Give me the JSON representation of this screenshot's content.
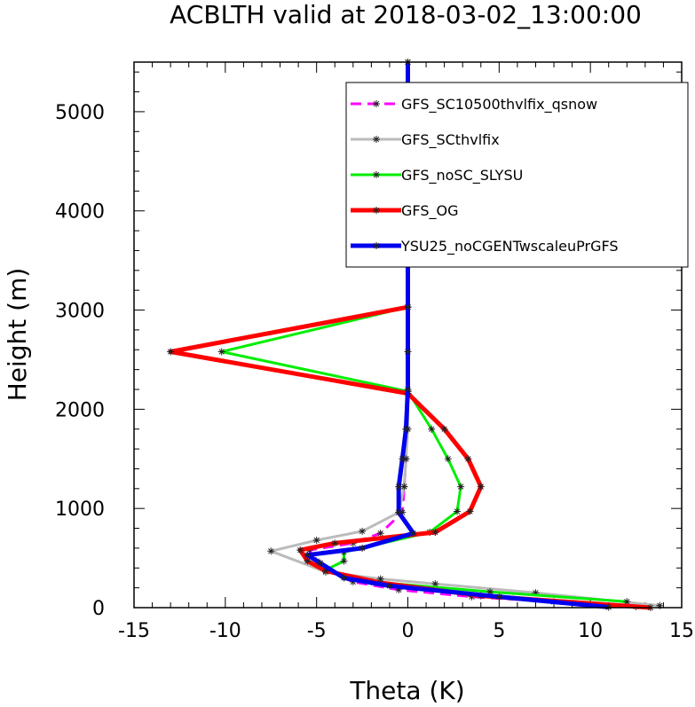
{
  "chart_data": {
    "type": "line",
    "title": "ACBLTH valid at 2018-03-02_13:00:00",
    "xlabel": "Theta (K)",
    "ylabel": "Height (m)",
    "xlim": [
      -15,
      15
    ],
    "ylim": [
      0,
      5500
    ],
    "xticks": [
      -15,
      -10,
      -5,
      0,
      5,
      10,
      15
    ],
    "xtick_labels": [
      "-15",
      "-10",
      "-5",
      "0",
      "5",
      "10",
      "15"
    ],
    "yticks": [
      0,
      1000,
      2000,
      3000,
      4000,
      5000
    ],
    "ytick_labels": [
      "0",
      "1000",
      "2000",
      "3000",
      "4000",
      "5000"
    ],
    "grid": false,
    "legend_position": "top-right",
    "series": [
      {
        "name": "GFS_SC10500thvlfix_qsnow",
        "color": "#ff00ff",
        "dash": "dashed",
        "width": 3,
        "points": [
          [
            12.5,
            10
          ],
          [
            8.0,
            60
          ],
          [
            3.5,
            110
          ],
          [
            -0.5,
            180
          ],
          [
            -3.0,
            260
          ],
          [
            -4.5,
            380
          ],
          [
            -5.0,
            470
          ],
          [
            -5.4,
            580
          ],
          [
            -3.0,
            650
          ],
          [
            -1.5,
            750
          ],
          [
            -0.3,
            960
          ],
          [
            -0.2,
            1220
          ],
          [
            -0.1,
            1500
          ],
          [
            -0.1,
            1800
          ],
          [
            0.0,
            2180
          ],
          [
            0.0,
            2580
          ],
          [
            0.0,
            3030
          ],
          [
            0.0,
            3560
          ],
          [
            0.0,
            4120
          ],
          [
            0.0,
            4700
          ],
          [
            0.0,
            5270
          ],
          [
            0.0,
            5500
          ]
        ]
      },
      {
        "name": "GFS_SCthvlfix",
        "color": "#bbbbbb",
        "dash": "solid",
        "width": 3,
        "points": [
          [
            13.8,
            20
          ],
          [
            7.0,
            150
          ],
          [
            1.5,
            240
          ],
          [
            -1.5,
            290
          ],
          [
            -4.5,
            360
          ],
          [
            -7.5,
            570
          ],
          [
            -5.0,
            680
          ],
          [
            -2.5,
            770
          ],
          [
            -0.5,
            960
          ],
          [
            -0.2,
            1220
          ],
          [
            -0.1,
            1500
          ],
          [
            0.0,
            1800
          ],
          [
            0.0,
            2180
          ],
          [
            0.0,
            2580
          ],
          [
            0.0,
            3030
          ],
          [
            0.0,
            3560
          ],
          [
            0.0,
            4120
          ],
          [
            0.0,
            4700
          ],
          [
            0.0,
            5270
          ],
          [
            0.0,
            5500
          ]
        ]
      },
      {
        "name": "GFS_noSC_SLYSU",
        "color": "#00ee00",
        "dash": "solid",
        "width": 3,
        "points": [
          [
            12.0,
            60
          ],
          [
            4.5,
            160
          ],
          [
            -2.0,
            260
          ],
          [
            -4.5,
            380
          ],
          [
            -3.5,
            470
          ],
          [
            -3.5,
            560
          ],
          [
            1.2,
            760
          ],
          [
            2.7,
            970
          ],
          [
            2.9,
            1220
          ],
          [
            2.2,
            1500
          ],
          [
            1.3,
            1800
          ],
          [
            0.0,
            2180
          ],
          [
            -10.2,
            2580
          ],
          [
            0.0,
            3030
          ],
          [
            0.0,
            3560
          ],
          [
            0.0,
            4120
          ],
          [
            0.0,
            4700
          ],
          [
            0.0,
            5270
          ],
          [
            0.0,
            5500
          ]
        ]
      },
      {
        "name": "GFS_OG",
        "color": "#ff0000",
        "dash": "solid",
        "width": 5,
        "points": [
          [
            13.3,
            0
          ],
          [
            4.0,
            120
          ],
          [
            -1.5,
            250
          ],
          [
            -4.5,
            370
          ],
          [
            -5.5,
            470
          ],
          [
            -5.9,
            580
          ],
          [
            -4.0,
            650
          ],
          [
            1.5,
            760
          ],
          [
            3.4,
            970
          ],
          [
            4.0,
            1220
          ],
          [
            3.3,
            1500
          ],
          [
            2.0,
            1800
          ],
          [
            0.0,
            2160
          ],
          [
            -13.0,
            2580
          ],
          [
            0.0,
            3030
          ],
          [
            0.0,
            3560
          ],
          [
            0.0,
            4120
          ],
          [
            0.0,
            4700
          ],
          [
            0.0,
            5270
          ],
          [
            0.0,
            5500
          ]
        ]
      },
      {
        "name": "YSU25_noCGENTwscaleuPrGFS",
        "color": "#0000ee",
        "dash": "solid",
        "width": 5,
        "points": [
          [
            11.0,
            5
          ],
          [
            5.0,
            110
          ],
          [
            -1.0,
            220
          ],
          [
            -3.5,
            300
          ],
          [
            -4.8,
            450
          ],
          [
            -5.5,
            530
          ],
          [
            -2.5,
            600
          ],
          [
            0.3,
            750
          ],
          [
            -0.5,
            960
          ],
          [
            -0.5,
            1220
          ],
          [
            -0.3,
            1500
          ],
          [
            -0.1,
            1800
          ],
          [
            0.0,
            2200
          ],
          [
            0.0,
            2580
          ],
          [
            0.0,
            3030
          ],
          [
            0.0,
            3560
          ],
          [
            -0.2,
            4120
          ],
          [
            0.0,
            4700
          ],
          [
            0.0,
            5270
          ],
          [
            0.0,
            5500
          ]
        ]
      }
    ]
  }
}
